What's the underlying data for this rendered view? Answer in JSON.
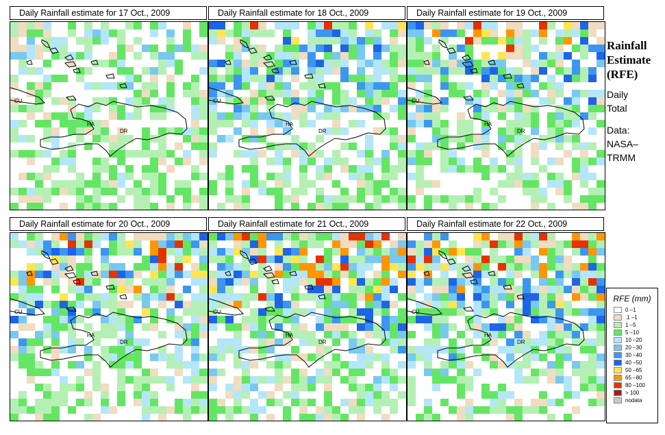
{
  "panels": [
    {
      "title": "Daily Rainfall estimate for  17 Oct., 2009",
      "seed": 17,
      "intensity": 0.35
    },
    {
      "title": "Daily Rainfall estimate for  18 Oct., 2009",
      "seed": 18,
      "intensity": 0.6
    },
    {
      "title": "Daily Rainfall estimate for  19 Oct., 2009",
      "seed": 19,
      "intensity": 0.7
    },
    {
      "title": "Daily Rainfall estimate for  20 Oct., 2009",
      "seed": 20,
      "intensity": 0.85
    },
    {
      "title": "Daily Rainfall estimate for  21 Oct., 2009",
      "seed": 21,
      "intensity": 0.9
    },
    {
      "title": "Daily Rainfall estimate for  22 Oct., 2009",
      "seed": 22,
      "intensity": 0.88
    }
  ],
  "map_labels": {
    "cuba": "CU",
    "haiti": "HA",
    "dominican_republic": "DR"
  },
  "side": {
    "title_line1": "Rainfall",
    "title_line2": "Estimate",
    "title_line3": "(RFE)",
    "daily": "Daily",
    "total": "Total",
    "data": "Data:",
    "source1": "NASA–",
    "source2": "TRMM"
  },
  "legend": {
    "title": "RFE (mm)",
    "items": [
      {
        "label": "0 –1",
        "color": "#ffffff"
      },
      {
        "label": ".1 –1",
        "color": "#f0dcc0"
      },
      {
        "label": "1 –5",
        "color": "#b4f0b4"
      },
      {
        "label": "5 –10",
        "color": "#64e664"
      },
      {
        "label": "10 –20",
        "color": "#b4e6fa"
      },
      {
        "label": "20 –30",
        "color": "#78c8f0"
      },
      {
        "label": "30 –40",
        "color": "#3c96f0"
      },
      {
        "label": "40 –50",
        "color": "#1e64e6"
      },
      {
        "label": "50 –65",
        "color": "#ffe650"
      },
      {
        "label": "65 –80",
        "color": "#ff9600"
      },
      {
        "label": "80 –100",
        "color": "#e63200"
      },
      {
        "label": "> 100",
        "color": "#a01e1e"
      },
      {
        "label": "nodata",
        "color": "#c8c8c8"
      }
    ]
  }
}
